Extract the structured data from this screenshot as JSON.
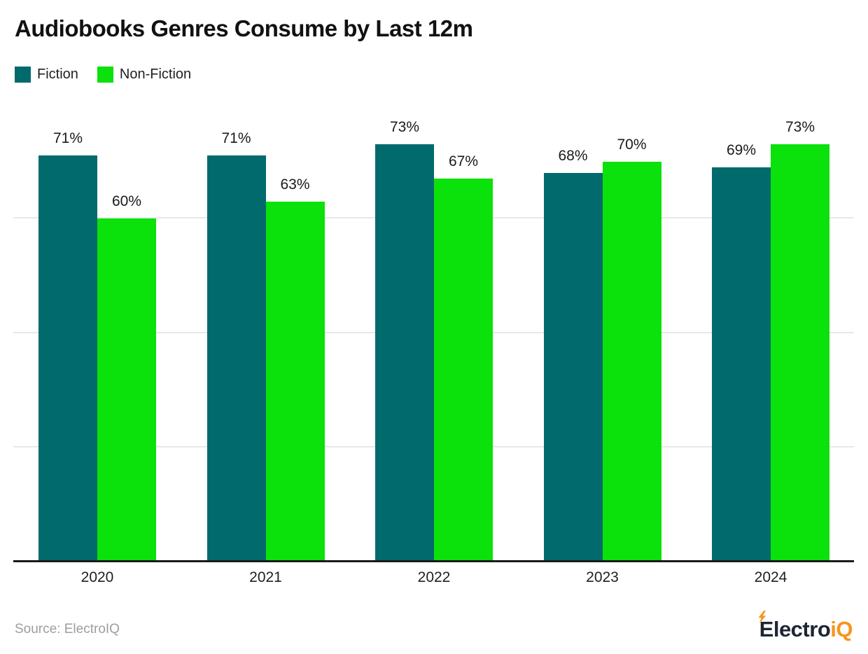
{
  "title": "Audiobooks Genres Consume by Last 12m",
  "chart_data": {
    "type": "bar",
    "title": "Audiobooks Genres Consume by Last 12m",
    "categories": [
      "2020",
      "2021",
      "2022",
      "2023",
      "2024"
    ],
    "series": [
      {
        "name": "Fiction",
        "color": "#016a6d",
        "values": [
          71,
          71,
          73,
          68,
          69
        ]
      },
      {
        "name": "Non-Fiction",
        "color": "#0be10b",
        "values": [
          60,
          63,
          67,
          70,
          73
        ]
      }
    ],
    "value_suffix": "%",
    "ylim": [
      0,
      80
    ],
    "gridlines": [
      20,
      40,
      60
    ],
    "grid": true,
    "legend_position": "top-left",
    "data_labels": true,
    "xlabel": "",
    "ylabel": ""
  },
  "colors": {
    "fiction": "#016a6d",
    "non_fiction": "#0be10b",
    "axis": "#1a1a1a",
    "gridline": "#e8e8e8",
    "text": "#212121",
    "source_text": "#9e9e9e",
    "logo_dark": "#1e2532",
    "logo_orange": "#f7941d"
  },
  "footer": {
    "source": "Source: ElectroIQ",
    "logo_part1": "Electro",
    "logo_part2": "iQ"
  }
}
